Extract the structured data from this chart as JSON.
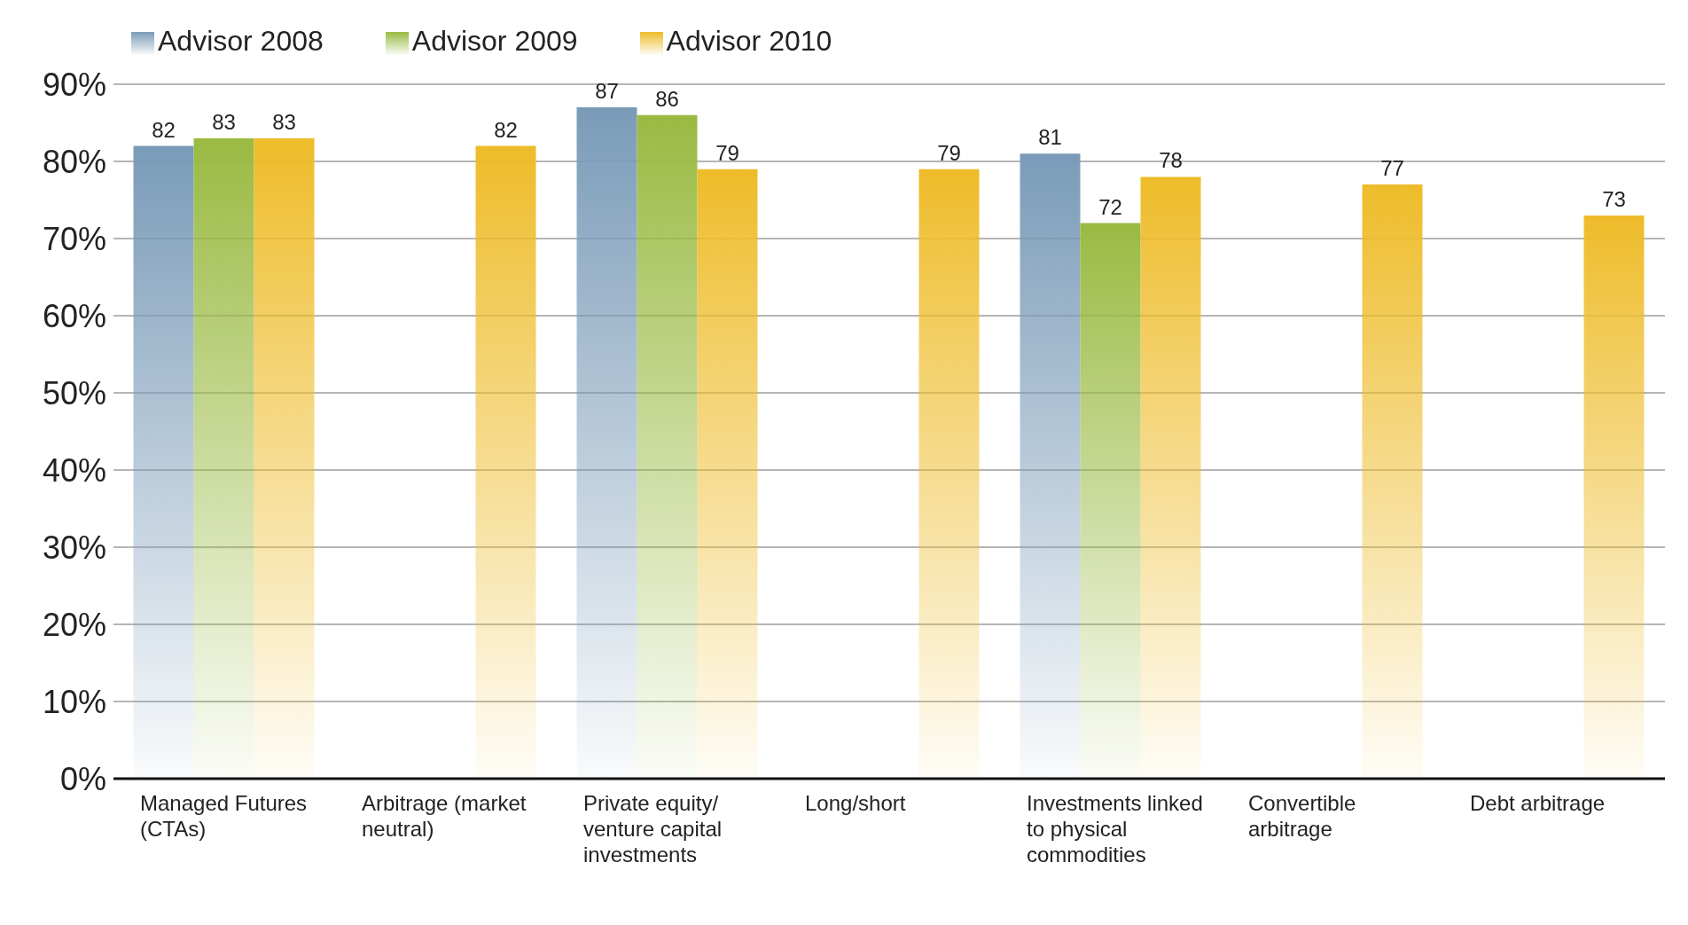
{
  "chart_data": {
    "type": "bar",
    "categories": [
      "Managed Futures (CTAs)",
      "Arbitrage (market neutral)",
      "Private equity/ venture capital investments",
      "Long/short",
      "Investments linked to physical commodities",
      "Convertible arbitrage",
      "Debt arbitrage"
    ],
    "series": [
      {
        "name": "Advisor 2008",
        "color": "#7a9bb8",
        "values": [
          82,
          null,
          87,
          null,
          81,
          null,
          null
        ]
      },
      {
        "name": "Advisor 2009",
        "color": "#9aba42",
        "values": [
          83,
          null,
          86,
          null,
          72,
          null,
          null
        ]
      },
      {
        "name": "Advisor 2010",
        "color": "#eebc2a",
        "values": [
          83,
          82,
          79,
          79,
          78,
          77,
          73
        ]
      }
    ],
    "ylim": [
      0,
      90
    ],
    "yticks": [
      {
        "value": 0,
        "label": "0%"
      },
      {
        "value": 10,
        "label": "10%"
      },
      {
        "value": 20,
        "label": "20%"
      },
      {
        "value": 30,
        "label": "30%"
      },
      {
        "value": 40,
        "label": "40%"
      },
      {
        "value": 50,
        "label": "50%"
      },
      {
        "value": 60,
        "label": "60%"
      },
      {
        "value": 70,
        "label": "70%"
      },
      {
        "value": 80,
        "label": "80%"
      },
      {
        "value": 90,
        "label": "90%"
      }
    ],
    "grid": "y",
    "legend": "top left",
    "data_labels": true
  }
}
